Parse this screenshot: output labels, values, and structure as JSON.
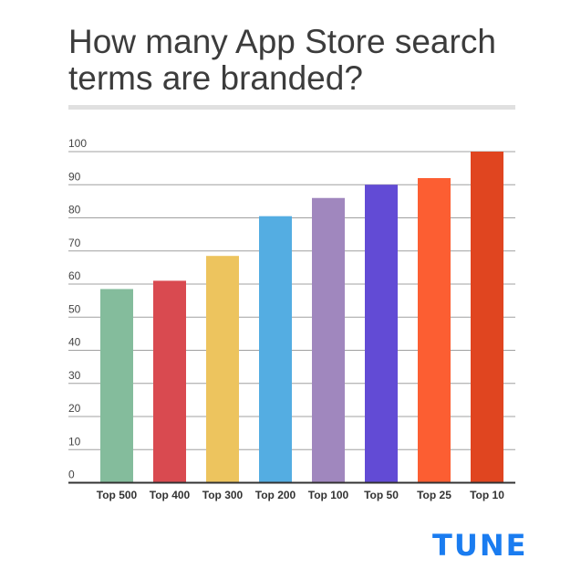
{
  "chart_data": {
    "type": "bar",
    "title": "How many App Store search terms are branded?",
    "categories": [
      "Top 500",
      "Top 400",
      "Top 300",
      "Top 200",
      "Top 100",
      "Top 50",
      "Top 25",
      "Top 10"
    ],
    "values": [
      58.5,
      61,
      68.5,
      80.5,
      86,
      90,
      92,
      100
    ],
    "colors": [
      "#84bc9c",
      "#d94a50",
      "#edc45e",
      "#54ade2",
      "#a087be",
      "#624bd5",
      "#fc5e32",
      "#e04520"
    ],
    "ylim": [
      0,
      100
    ],
    "yticks": [
      "0",
      "10",
      "20",
      "30",
      "40",
      "50",
      "60",
      "70",
      "80",
      "90",
      "100"
    ],
    "xlabel": "",
    "ylabel": "",
    "grid": true,
    "legend": "none"
  },
  "logo": "TUNE",
  "logo_color": "#1a7cf0"
}
